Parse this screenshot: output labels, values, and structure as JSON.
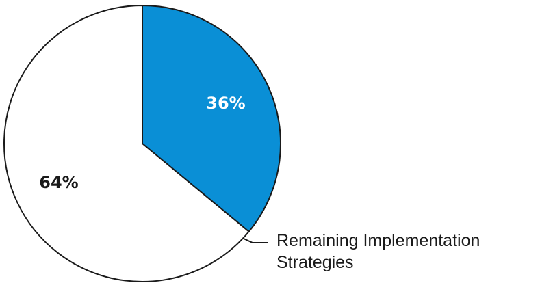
{
  "chart_data": {
    "type": "pie",
    "slices": [
      {
        "value": 36,
        "label": "36%",
        "color": "#0a8fd6",
        "label_color": "#ffffff"
      },
      {
        "value": 64,
        "label": "64%",
        "color": "#ffffff",
        "label_color": "#1a1a1a"
      }
    ],
    "annotation": {
      "line1": "Remaining Implementation",
      "line2": "Strategies"
    },
    "stroke_color": "#1a1a1a"
  }
}
